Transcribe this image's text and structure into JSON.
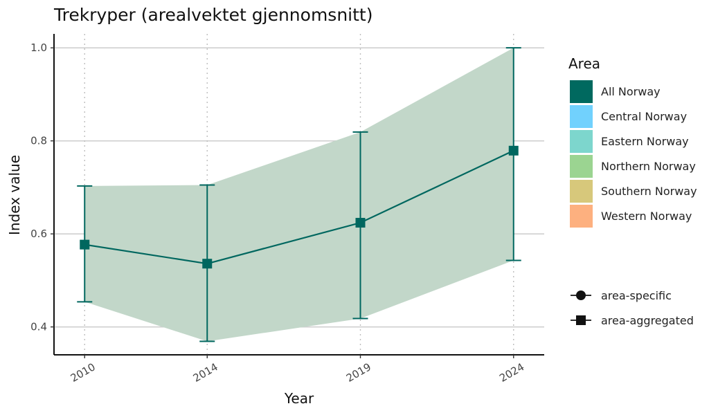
{
  "chart_data": {
    "type": "line",
    "title": "Trekryper (arealvektet gjennomsnitt)",
    "xlabel": "Year",
    "ylabel": "Index value",
    "x": [
      "2010",
      "2014",
      "2019",
      "2024"
    ],
    "x_values": [
      2010,
      2014,
      2019,
      2024
    ],
    "y_ticks": [
      "0.4",
      "0.6",
      "0.8",
      "1.0"
    ],
    "y_tick_values": [
      0.4,
      0.6,
      0.8,
      1.0
    ],
    "ylim": [
      0.34,
      1.03
    ],
    "xlim": [
      2009,
      2025
    ],
    "series": [
      {
        "name": "All Norway",
        "values": [
          0.577,
          0.536,
          0.624,
          0.779
        ],
        "lower": [
          0.454,
          0.369,
          0.418,
          0.543
        ],
        "upper": [
          0.703,
          0.705,
          0.819,
          1.0
        ],
        "marker": "square"
      }
    ],
    "ribbon_color": "#c2d7c9",
    "line_color": "#00675f",
    "legend": {
      "title": "Area",
      "position": "right",
      "items": [
        {
          "label": "All Norway",
          "color": "#00695f"
        },
        {
          "label": "Central Norway",
          "color": "#71d1fd"
        },
        {
          "label": "Eastern Norway",
          "color": "#7dd6cd"
        },
        {
          "label": "Northern Norway",
          "color": "#9bd491"
        },
        {
          "label": "Southern Norway",
          "color": "#d7c87b"
        },
        {
          "label": "Western Norway",
          "color": "#fdb07f"
        }
      ],
      "shape_items": [
        {
          "label": "area-specific",
          "shape": "circle"
        },
        {
          "label": "area-aggregated",
          "shape": "square"
        }
      ]
    },
    "grid": {
      "horizontal_major": true,
      "vertical_dotted": true
    }
  }
}
